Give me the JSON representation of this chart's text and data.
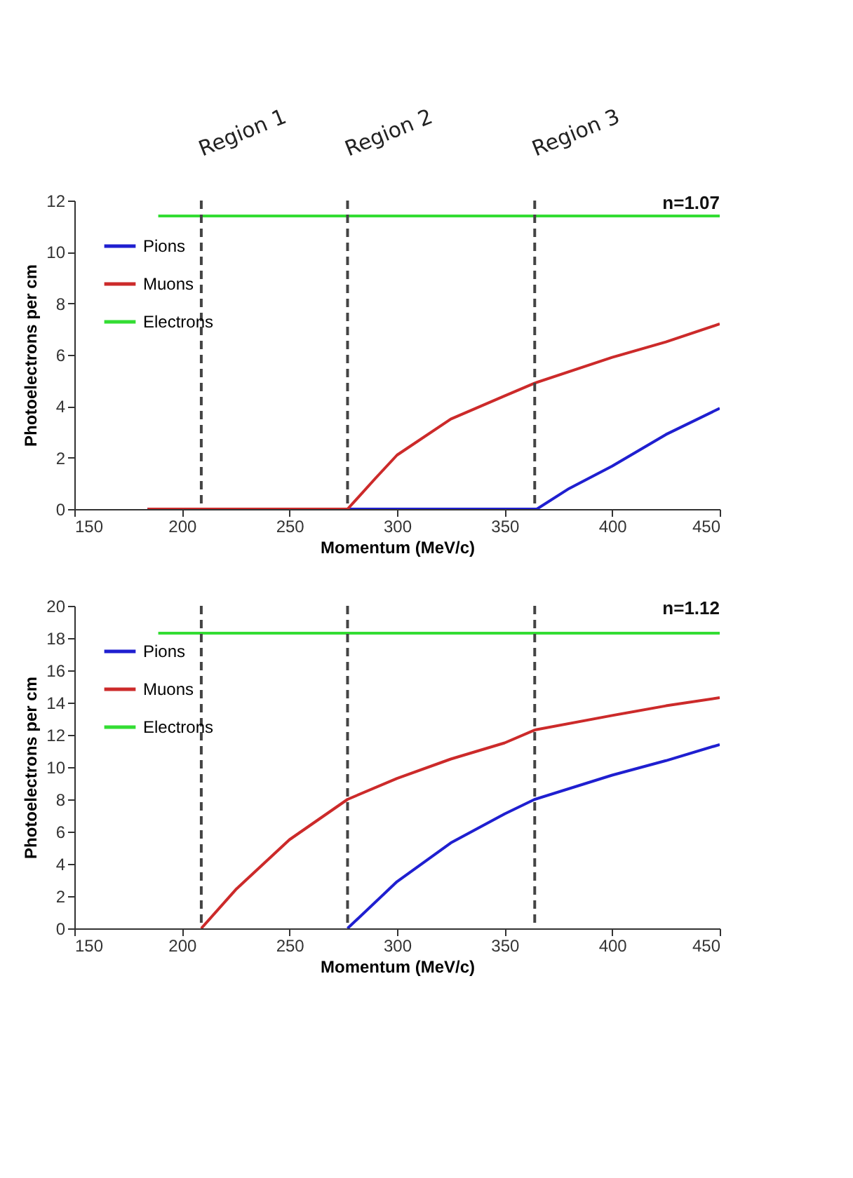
{
  "chart_data": [
    {
      "type": "line",
      "xlabel": "Momentum (MeV/c)",
      "ylabel": "Photoelectrons per cm",
      "annotations": [
        "n=1.07"
      ],
      "xlim": [
        150,
        450
      ],
      "xticks": [
        150,
        200,
        250,
        300,
        350,
        400,
        450
      ],
      "ylim": [
        0,
        12
      ],
      "yticks": [
        0,
        2,
        4,
        6,
        8,
        10,
        12
      ],
      "legend": "top left",
      "grid": false,
      "series": [
        {
          "name": "Pions",
          "color": "#1f1fd0",
          "x": [
            184,
            250,
            365,
            380,
            400,
            425,
            450
          ],
          "values": [
            0,
            0,
            0,
            0.8,
            1.67,
            2.9,
            3.92
          ]
        },
        {
          "name": "Muons",
          "color": "#cc2a2a",
          "x": [
            184,
            250,
            277,
            290,
            300,
            325,
            350,
            364,
            400,
            425,
            450
          ],
          "values": [
            0,
            0,
            0,
            1.2,
            2.1,
            3.5,
            4.4,
            4.9,
            5.9,
            6.5,
            7.2
          ]
        },
        {
          "name": "Electrons",
          "color": "#33dd33",
          "x": [
            189,
            450
          ],
          "values": [
            11.4,
            11.4
          ]
        }
      ],
      "ref_lines": [
        {
          "axis": "x",
          "value": 209,
          "label": "Region 1",
          "color": "#444444",
          "line_style": "dashed"
        },
        {
          "axis": "x",
          "value": 277,
          "label": "Region 2",
          "color": "#444444",
          "line_style": "dashed"
        },
        {
          "axis": "x",
          "value": 364,
          "label": "Region 3",
          "color": "#444444",
          "line_style": "dashed"
        }
      ]
    },
    {
      "type": "line",
      "xlabel": "Momentum (MeV/c)",
      "ylabel": "Photoelectrons per cm",
      "annotations": [
        "n=1.12"
      ],
      "xlim": [
        150,
        450
      ],
      "xticks": [
        150,
        200,
        250,
        300,
        350,
        400,
        450
      ],
      "ylim": [
        0,
        20
      ],
      "yticks": [
        0,
        2,
        4,
        6,
        8,
        10,
        12,
        14,
        16,
        18,
        20
      ],
      "legend": "top left",
      "grid": false,
      "series": [
        {
          "name": "Pions",
          "color": "#1f1fd0",
          "x": [
            277,
            300,
            325,
            350,
            364,
            400,
            425,
            450
          ],
          "values": [
            0,
            2.9,
            5.3,
            7.1,
            8.0,
            9.5,
            10.4,
            11.4
          ]
        },
        {
          "name": "Muons",
          "color": "#cc2a2a",
          "x": [
            209,
            225,
            250,
            277,
            300,
            325,
            350,
            364,
            400,
            425,
            450
          ],
          "values": [
            0,
            2.4,
            5.5,
            8.0,
            9.3,
            10.5,
            11.5,
            12.3,
            13.2,
            13.8,
            14.3
          ]
        },
        {
          "name": "Electrons",
          "color": "#33dd33",
          "x": [
            189,
            450
          ],
          "values": [
            18.3,
            18.3
          ]
        }
      ],
      "ref_lines": [
        {
          "axis": "x",
          "value": 209,
          "color": "#444444",
          "line_style": "dashed"
        },
        {
          "axis": "x",
          "value": 277,
          "color": "#444444",
          "line_style": "dashed"
        },
        {
          "axis": "x",
          "value": 364,
          "color": "#444444",
          "line_style": "dashed"
        }
      ]
    }
  ]
}
